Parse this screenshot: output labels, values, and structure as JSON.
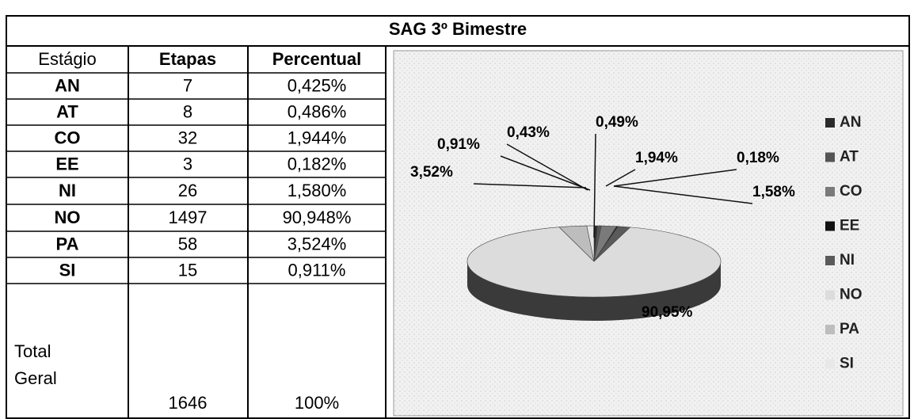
{
  "title": "SAG 3º Bimestre",
  "table": {
    "header": [
      "Estágio",
      "Etapas",
      "Percentual"
    ],
    "rows": [
      [
        "AN",
        "7",
        "0,425%"
      ],
      [
        "AT",
        "8",
        "0,486%"
      ],
      [
        "CO",
        "32",
        "1,944%"
      ],
      [
        "EE",
        "3",
        "0,182%"
      ],
      [
        "NI",
        "26",
        "1,580%"
      ],
      [
        "NO",
        "1497",
        "90,948%"
      ],
      [
        "PA",
        "58",
        "3,524%"
      ],
      [
        "SI",
        "15",
        "0,911%"
      ]
    ],
    "total": [
      "Total Geral",
      "1646",
      "100%"
    ]
  },
  "chart_data": {
    "type": "pie",
    "categories": [
      "AN",
      "AT",
      "CO",
      "EE",
      "NI",
      "NO",
      "PA",
      "SI"
    ],
    "values": [
      0.43,
      0.49,
      1.94,
      0.18,
      1.58,
      90.95,
      3.52,
      0.91
    ],
    "value_labels": [
      "0,43%",
      "0,49%",
      "1,94%",
      "0,18%",
      "1,58%",
      "90,95%",
      "3,52%",
      "0,91%"
    ],
    "colors": [
      "#2a2a2a",
      "#555555",
      "#7a7a7a",
      "#111111",
      "#5a5a5a",
      "#dcdcdc",
      "#bdbdbd",
      "#e8e8e8"
    ],
    "legend": "right"
  }
}
